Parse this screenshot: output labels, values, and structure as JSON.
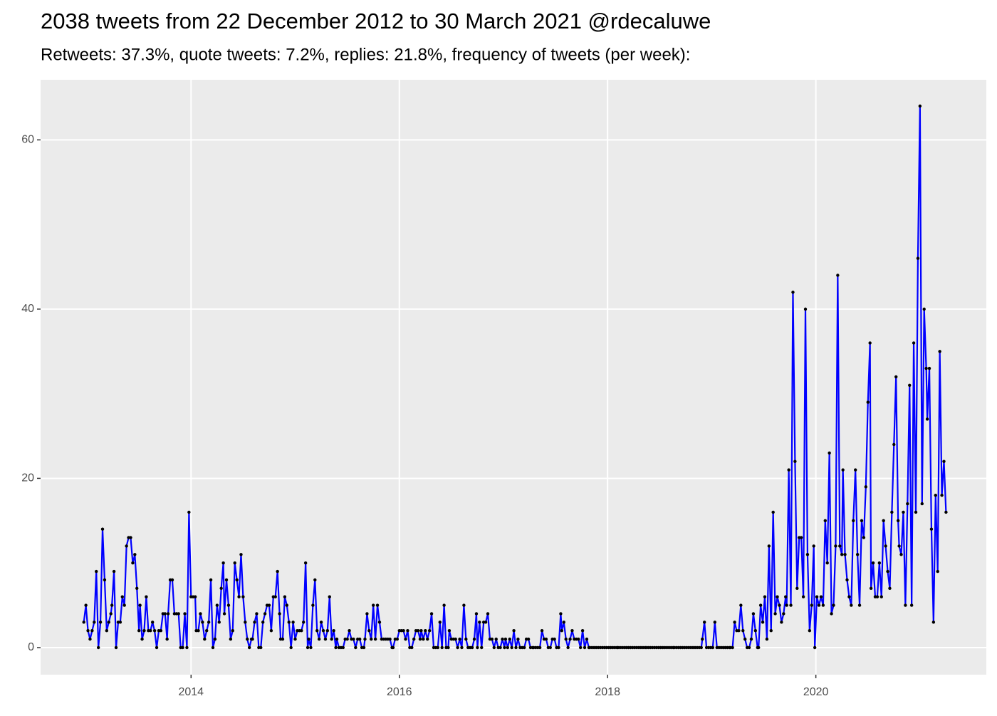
{
  "chart_data": {
    "type": "line",
    "title": "2038 tweets from 22 December 2012 to 30 March 2021 @rdecaluwe",
    "subtitle": "Retweets: 37.3%, quote tweets: 7.2%, replies: 21.8%, frequency of tweets (per week):",
    "line_color": "#0000ff",
    "point_color": "#000000",
    "panel_color": "#ebebeb",
    "grid": true,
    "xlim": [
      2012.555,
      2021.637
    ],
    "xticks": [
      2014,
      2016,
      2018,
      2020
    ],
    "ylim": [
      -3.2,
      67.1
    ],
    "yticks": [
      0,
      20,
      40,
      60
    ],
    "x": [
      2012.97,
      2012.99,
      2013.01,
      2013.03,
      2013.05,
      2013.07,
      2013.09,
      2013.11,
      2013.13,
      2013.15,
      2013.17,
      2013.19,
      2013.21,
      2013.23,
      2013.24,
      2013.26,
      2013.28,
      2013.3,
      2013.32,
      2013.34,
      2013.36,
      2013.38,
      2013.4,
      2013.42,
      2013.44,
      2013.46,
      2013.48,
      2013.5,
      2013.51,
      2013.53,
      2013.55,
      2013.57,
      2013.59,
      2013.61,
      2013.63,
      2013.65,
      2013.67,
      2013.69,
      2013.71,
      2013.73,
      2013.75,
      2013.77,
      2013.78,
      2013.8,
      2013.82,
      2013.84,
      2013.86,
      2013.88,
      2013.9,
      2013.92,
      2013.94,
      2013.96,
      2013.98,
      2014.0,
      2014.02,
      2014.04,
      2014.05,
      2014.07,
      2014.09,
      2014.11,
      2014.13,
      2014.15,
      2014.17,
      2014.19,
      2014.21,
      2014.23,
      2014.25,
      2014.27,
      2014.29,
      2014.31,
      2014.32,
      2014.34,
      2014.36,
      2014.38,
      2014.4,
      2014.42,
      2014.44,
      2014.46,
      2014.48,
      2014.5,
      2014.52,
      2014.54,
      2014.56,
      2014.58,
      2014.59,
      2014.61,
      2014.63,
      2014.65,
      2014.67,
      2014.69,
      2014.71,
      2014.73,
      2014.75,
      2014.77,
      2014.79,
      2014.81,
      2014.83,
      2014.85,
      2014.86,
      2014.88,
      2014.9,
      2014.92,
      2014.94,
      2014.96,
      2014.98,
      2015.0,
      2015.02,
      2015.04,
      2015.06,
      2015.08,
      2015.1,
      2015.12,
      2015.13,
      2015.15,
      2015.17,
      2015.19,
      2015.21,
      2015.23,
      2015.25,
      2015.27,
      2015.29,
      2015.31,
      2015.33,
      2015.35,
      2015.37,
      2015.39,
      2015.4,
      2015.42,
      2015.44,
      2015.46,
      2015.48,
      2015.5,
      2015.52,
      2015.54,
      2015.56,
      2015.58,
      2015.6,
      2015.62,
      2015.64,
      2015.66,
      2015.67,
      2015.69,
      2015.71,
      2015.73,
      2015.75,
      2015.77,
      2015.79,
      2015.81,
      2015.83,
      2015.85,
      2015.87,
      2015.89,
      2015.91,
      2015.93,
      2015.94,
      2015.96,
      2015.98,
      2016.0,
      2016.02,
      2016.04,
      2016.06,
      2016.08,
      2016.1,
      2016.12,
      2016.14,
      2016.16,
      2016.18,
      2016.2,
      2016.21,
      2016.23,
      2016.25,
      2016.27,
      2016.29,
      2016.31,
      2016.33,
      2016.35,
      2016.37,
      2016.39,
      2016.41,
      2016.43,
      2016.45,
      2016.47,
      2016.48,
      2016.5,
      2016.52,
      2016.54,
      2016.56,
      2016.58,
      2016.6,
      2016.62,
      2016.64,
      2016.66,
      2016.68,
      2016.7,
      2016.72,
      2016.74,
      2016.75,
      2016.77,
      2016.79,
      2016.81,
      2016.83,
      2016.85,
      2016.87,
      2016.89,
      2016.91,
      2016.93,
      2016.95,
      2016.97,
      2016.99,
      2017.01,
      2017.02,
      2017.04,
      2017.06,
      2017.08,
      2017.1,
      2017.12,
      2017.14,
      2017.16,
      2017.18,
      2017.2,
      2017.22,
      2017.24,
      2017.26,
      2017.28,
      2017.29,
      2017.31,
      2017.33,
      2017.35,
      2017.37,
      2017.39,
      2017.41,
      2017.43,
      2017.45,
      2017.47,
      2017.49,
      2017.51,
      2017.53,
      2017.55,
      2017.56,
      2017.58,
      2017.6,
      2017.62,
      2017.64,
      2017.66,
      2017.68,
      2017.7,
      2017.72,
      2017.74,
      2017.76,
      2017.78,
      2017.8,
      2017.82,
      2017.83,
      2017.85,
      2017.87,
      2017.89,
      2017.91,
      2017.93,
      2017.95,
      2017.97,
      2017.99,
      2018.01,
      2018.03,
      2018.05,
      2018.07,
      2018.09,
      2018.1,
      2018.12,
      2018.14,
      2018.16,
      2018.18,
      2018.2,
      2018.22,
      2018.24,
      2018.26,
      2018.28,
      2018.3,
      2018.32,
      2018.34,
      2018.36,
      2018.37,
      2018.39,
      2018.41,
      2018.43,
      2018.45,
      2018.47,
      2018.49,
      2018.51,
      2018.53,
      2018.55,
      2018.57,
      2018.59,
      2018.61,
      2018.63,
      2018.64,
      2018.66,
      2018.68,
      2018.7,
      2018.72,
      2018.74,
      2018.76,
      2018.78,
      2018.8,
      2018.82,
      2018.84,
      2018.86,
      2018.88,
      2018.9,
      2018.91,
      2018.93,
      2018.95,
      2018.97,
      2018.99,
      2019.01,
      2019.03,
      2019.05,
      2019.07,
      2019.09,
      2019.11,
      2019.13,
      2019.15,
      2019.17,
      2019.18,
      2019.2,
      2019.22,
      2019.24,
      2019.26,
      2019.28,
      2019.3,
      2019.32,
      2019.34,
      2019.36,
      2019.38,
      2019.4,
      2019.42,
      2019.44,
      2019.45,
      2019.47,
      2019.49,
      2019.51,
      2019.53,
      2019.55,
      2019.57,
      2019.59,
      2019.61,
      2019.63,
      2019.65,
      2019.67,
      2019.69,
      2019.71,
      2019.72,
      2019.74,
      2019.76,
      2019.78,
      2019.8,
      2019.82,
      2019.84,
      2019.86,
      2019.88,
      2019.9,
      2019.92,
      2019.94,
      2019.96,
      2019.98,
      2019.99,
      2020.01,
      2020.03,
      2020.05,
      2020.07,
      2020.09,
      2020.11,
      2020.13,
      2020.15,
      2020.17,
      2020.19,
      2020.21,
      2020.23,
      2020.25,
      2020.26,
      2020.28,
      2020.3,
      2020.32,
      2020.34,
      2020.36,
      2020.38,
      2020.4,
      2020.42,
      2020.44,
      2020.46,
      2020.48,
      2020.5,
      2020.52,
      2020.53,
      2020.55,
      2020.57,
      2020.59,
      2020.61,
      2020.63,
      2020.65,
      2020.67,
      2020.69,
      2020.71,
      2020.73,
      2020.75,
      2020.77,
      2020.79,
      2020.8,
      2020.82,
      2020.84,
      2020.86,
      2020.88,
      2020.9,
      2020.92,
      2020.94,
      2020.96,
      2020.98,
      2021.0,
      2021.02,
      2021.04,
      2021.06,
      2021.07,
      2021.09,
      2021.11,
      2021.13,
      2021.15,
      2021.17,
      2021.19,
      2021.21,
      2021.23,
      2021.25
    ],
    "values": [
      3,
      5,
      2,
      1,
      2,
      3,
      9,
      0,
      3,
      14,
      8,
      2,
      3,
      4,
      5,
      9,
      0,
      3,
      3,
      6,
      5,
      12,
      13,
      13,
      10,
      11,
      7,
      2,
      5,
      1,
      2,
      6,
      2,
      2,
      3,
      2,
      0,
      2,
      2,
      4,
      4,
      1,
      4,
      8,
      8,
      4,
      4,
      4,
      0,
      0,
      4,
      0,
      16,
      6,
      6,
      6,
      2,
      2,
      4,
      3,
      1,
      2,
      3,
      8,
      0,
      1,
      5,
      3,
      7,
      10,
      4,
      8,
      5,
      1,
      2,
      10,
      8,
      6,
      11,
      6,
      3,
      1,
      0,
      1,
      1,
      3,
      4,
      0,
      0,
      3,
      4,
      5,
      5,
      2,
      6,
      6,
      9,
      4,
      1,
      1,
      6,
      5,
      3,
      0,
      3,
      1,
      2,
      2,
      2,
      3,
      10,
      0,
      1,
      0,
      5,
      8,
      2,
      1,
      3,
      2,
      1,
      2,
      6,
      1,
      2,
      0,
      1,
      0,
      0,
      0,
      1,
      1,
      2,
      1,
      1,
      0,
      1,
      1,
      0,
      0,
      1,
      4,
      2,
      1,
      5,
      1,
      5,
      3,
      1,
      1,
      1,
      1,
      1,
      0,
      0,
      1,
      1,
      2,
      2,
      2,
      1,
      2,
      0,
      0,
      1,
      2,
      2,
      1,
      2,
      1,
      2,
      1,
      2,
      4,
      0,
      0,
      0,
      3,
      0,
      5,
      0,
      0,
      2,
      1,
      1,
      1,
      0,
      1,
      0,
      5,
      1,
      0,
      0,
      0,
      1,
      4,
      0,
      3,
      0,
      3,
      3,
      4,
      1,
      1,
      0,
      1,
      0,
      0,
      1,
      0,
      1,
      0,
      1,
      0,
      2,
      0,
      1,
      0,
      0,
      0,
      1,
      1,
      0,
      0,
      0,
      0,
      0,
      0,
      2,
      1,
      1,
      0,
      0,
      1,
      1,
      0,
      0,
      4,
      2,
      3,
      1,
      0,
      1,
      2,
      1,
      1,
      1,
      0,
      2,
      0,
      1,
      0,
      0,
      0,
      0,
      0,
      0,
      0,
      0,
      0,
      0,
      0,
      0,
      0,
      0,
      0,
      0,
      0,
      0,
      0,
      0,
      0,
      0,
      0,
      0,
      0,
      0,
      0,
      0,
      0,
      0,
      0,
      0,
      0,
      0,
      0,
      0,
      0,
      0,
      0,
      0,
      0,
      0,
      0,
      0,
      0,
      0,
      0,
      0,
      0,
      0,
      0,
      0,
      0,
      0,
      0,
      0,
      0,
      1,
      3,
      0,
      0,
      0,
      0,
      3,
      0,
      0,
      0,
      0,
      0,
      0,
      0,
      0,
      0,
      3,
      2,
      2,
      5,
      2,
      1,
      0,
      0,
      1,
      4,
      2,
      0,
      0,
      5,
      3,
      6,
      1,
      12,
      2,
      16,
      4,
      6,
      5,
      3,
      4,
      6,
      5,
      21,
      5,
      42,
      22,
      7,
      13,
      13,
      6,
      40,
      11,
      2,
      5,
      12,
      0,
      6,
      5,
      6,
      5,
      15,
      10,
      23,
      4,
      5,
      12,
      44,
      12,
      11,
      21,
      11,
      8,
      6,
      5,
      15,
      21,
      11,
      5,
      15,
      13,
      19,
      29,
      36,
      7,
      10,
      6,
      6,
      10,
      6,
      15,
      12,
      9,
      7,
      16,
      24,
      32,
      15,
      12,
      11,
      16,
      5,
      17,
      31,
      5,
      36,
      16,
      46,
      64,
      17,
      40,
      33,
      27,
      33,
      14,
      3,
      18,
      9,
      35,
      18,
      22,
      16
    ]
  }
}
